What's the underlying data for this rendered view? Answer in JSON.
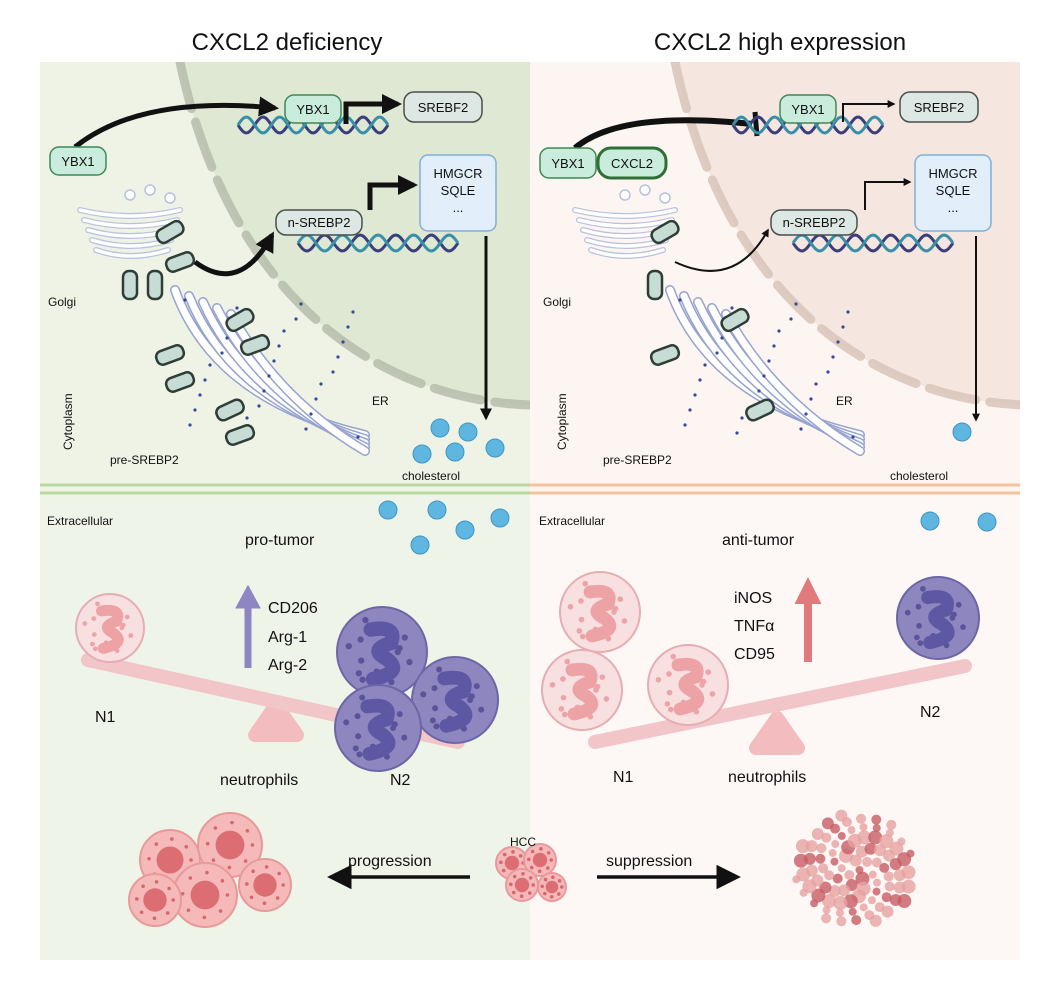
{
  "titles": {
    "left": "CXCL2 deficiency",
    "right": "CXCL2 high expression"
  },
  "colors": {
    "left_bg": "#eef3e6",
    "left_nucleus": "#dfe8d3",
    "left_membrane": "#b9d89f",
    "right_bg": "#fdf5f1",
    "right_nucleus": "#f5e6df",
    "right_membrane": "#f2c39c",
    "protein_green": "#c9ecdc",
    "protein_green_stroke": "#3d8a55",
    "box_blue": "#e3eefb",
    "n1_pink": "#f4c6c8",
    "n2_purple": "#8d86bf",
    "up_arrow_purple": "#8e86c2",
    "up_arrow_red": "#e07a7d",
    "cholesterol": "#5fb6e0"
  },
  "left": {
    "ybx1_cyto": "YBX1",
    "ybx1_nuc": "YBX1",
    "srebf2": "SREBF2",
    "targets": [
      "HMGCR",
      "SQLE",
      "..."
    ],
    "n_srebp2": "n-SREBP2",
    "golgi": "Golgi",
    "er": "ER",
    "cytoplasm": "Cytoplasm",
    "pre_srebp2": "pre-SREBP2",
    "cholesterol": "cholesterol",
    "extracellular": "Extracellular",
    "phenotype": "pro-tumor",
    "markers": [
      "CD206",
      "Arg-1",
      "Arg-2"
    ],
    "n1": "N1",
    "n2": "N2",
    "neutrophils": "neutrophils"
  },
  "right": {
    "ybx1_cyto": "YBX1",
    "cxcl2": "CXCL2",
    "ybx1_nuc": "YBX1",
    "srebf2": "SREBF2",
    "targets": [
      "HMGCR",
      "SQLE",
      "..."
    ],
    "n_srebp2": "n-SREBP2",
    "golgi": "Golgi",
    "er": "ER",
    "cytoplasm": "Cytoplasm",
    "pre_srebp2": "pre-SREBP2",
    "cholesterol": "cholesterol",
    "extracellular": "Extracellular",
    "phenotype": "anti-tumor",
    "markers": [
      "iNOS",
      "TNFα",
      "CD95"
    ],
    "n1": "N1",
    "n2": "N2",
    "neutrophils": "neutrophils"
  },
  "bottom": {
    "hcc": "HCC",
    "progression": "progression",
    "suppression": "suppression"
  },
  "icons": [
    "dna-helix-icon",
    "golgi-icon",
    "er-icon",
    "neutrophil-icon",
    "cholesterol-icon",
    "tumor-cell-icon"
  ]
}
